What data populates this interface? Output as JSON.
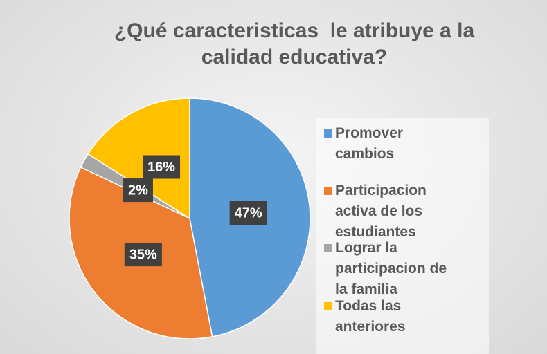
{
  "chart_data": {
    "type": "pie",
    "title": "¿Qué caracteristicas  le atribuye a la calidad educativa?",
    "categories": [
      "Promover cambios",
      "Participacion activa de los estudiantes",
      "Lograr la participacion de la familia",
      "Todas las anteriores"
    ],
    "values": [
      47,
      35,
      2,
      16
    ],
    "value_labels": [
      "47%",
      "35%",
      "2%",
      "16%"
    ],
    "colors": [
      "#5b9bd5",
      "#ed7d31",
      "#a5a5a5",
      "#ffc000"
    ]
  }
}
